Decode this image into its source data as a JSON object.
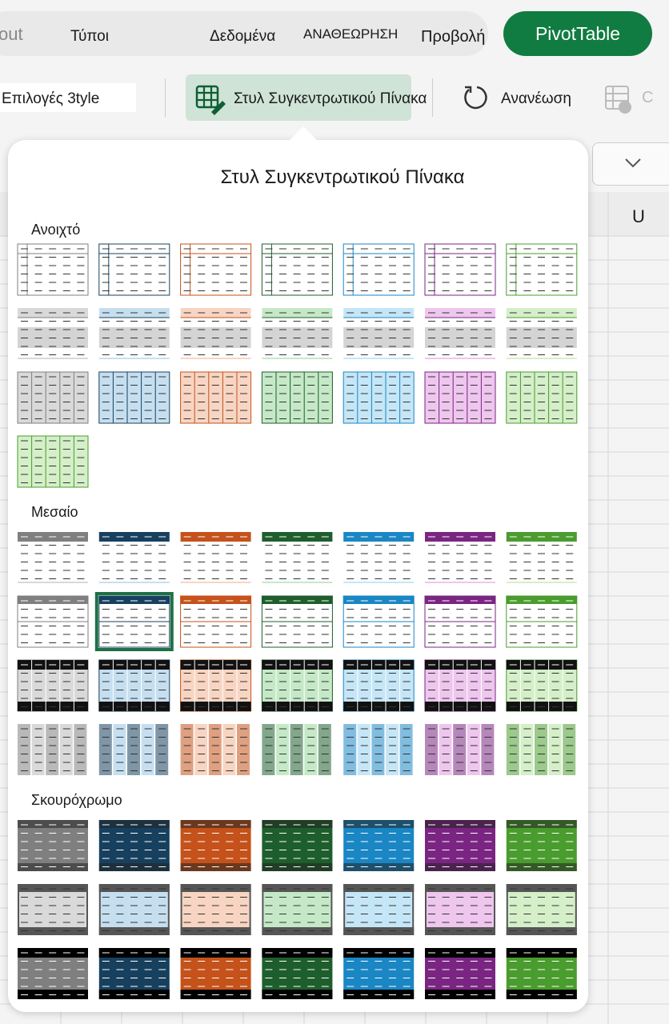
{
  "tabs": [
    "out",
    "Τύποι",
    "Δεδομένα",
    "ΑΝΑΘΕΩΡΗΣΗ",
    "Προβολή"
  ],
  "pivot_button": "PivotTable",
  "toolbar": [
    "Επιλογές 3tyle",
    "Στυλ Συγκεντρωτικού Πίνακα",
    "Ανανέωση",
    "C"
  ],
  "panel": {
    "title": "Στυλ Συγκεντρωτικού Πίνακα",
    "sections": [
      {
        "label": "Ανοιχτό"
      },
      {
        "label": "Μεσαίο"
      },
      {
        "label": "Σκουρόχρωμο"
      }
    ]
  },
  "sheet": {
    "column": "U"
  }
}
